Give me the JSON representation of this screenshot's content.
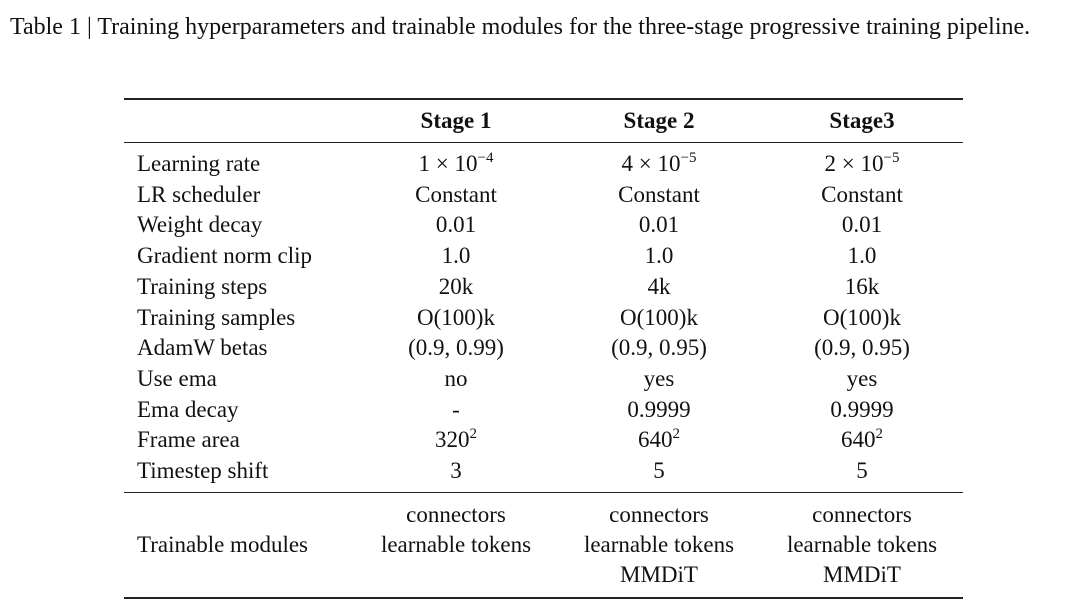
{
  "caption": "Table 1 | Training hyperparameters and trainable modules for the three-stage progressive training pipeline.",
  "table": {
    "headers": [
      "Stage 1",
      "Stage 2",
      "Stage3"
    ],
    "rows": [
      [
        "Learning rate",
        {
          "base": "1 × 10",
          "sup": "−4"
        },
        {
          "base": "4 × 10",
          "sup": "−5"
        },
        {
          "base": "2 × 10",
          "sup": "−5"
        }
      ],
      [
        "LR scheduler",
        "Constant",
        "Constant",
        "Constant"
      ],
      [
        "Weight decay",
        "0.01",
        "0.01",
        "0.01"
      ],
      [
        "Gradient norm clip",
        "1.0",
        "1.0",
        "1.0"
      ],
      [
        "Training steps",
        "20k",
        "4k",
        "16k"
      ],
      [
        "Training samples",
        "O(100)k",
        "O(100)k",
        "O(100)k"
      ],
      [
        "AdamW betas",
        "(0.9, 0.99)",
        "(0.9, 0.95)",
        "(0.9, 0.95)"
      ],
      [
        "Use ema",
        "no",
        "yes",
        "yes"
      ],
      [
        "Ema decay",
        "-",
        "0.9999",
        "0.9999"
      ],
      [
        "Frame area",
        {
          "base": "320",
          "sup": "2"
        },
        {
          "base": "640",
          "sup": "2"
        },
        {
          "base": "640",
          "sup": "2"
        }
      ],
      [
        "Timestep shift",
        "3",
        "5",
        "5"
      ]
    ],
    "modules_row": {
      "label": "Trainable modules",
      "cells": [
        [
          "connectors",
          "learnable tokens"
        ],
        [
          "connectors",
          "learnable tokens",
          "MMDiT"
        ],
        [
          "connectors",
          "learnable tokens",
          "MMDiT"
        ]
      ]
    }
  }
}
